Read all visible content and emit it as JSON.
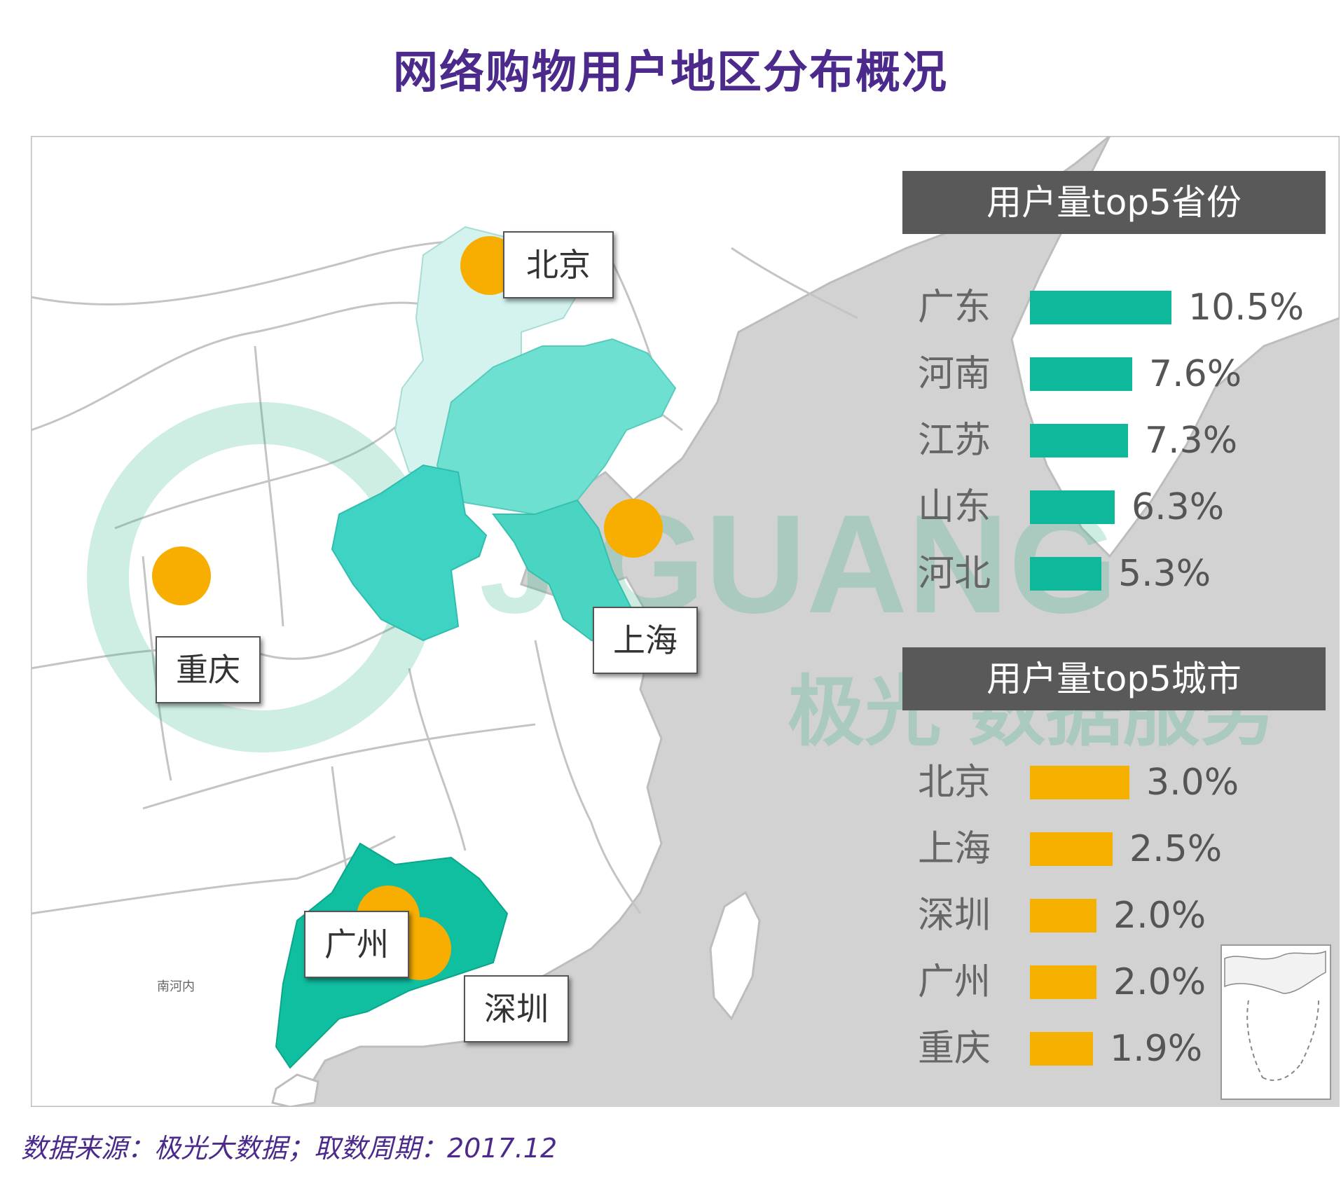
{
  "title": "网络购物用户地区分布概况",
  "colors": {
    "province_bar": "#0eb89a",
    "city_bar": "#f5b000",
    "city_marker": "#f7ae00",
    "title": "#4b2a8c",
    "panel_header_bg": "#595959",
    "sea": "#d2d2d2",
    "land": "#ffffff",
    "region_guangdong": "#10bea0",
    "region_henan": "#3fd3c3",
    "region_jiangsu": "#4ad5c2",
    "region_shandong": "#6ee0d2",
    "region_hebei": "#d4f3ef"
  },
  "map": {
    "city_labels": [
      {
        "id": "beijing",
        "name": "北京"
      },
      {
        "id": "shanghai",
        "name": "上海"
      },
      {
        "id": "chongqing",
        "name": "重庆"
      },
      {
        "id": "guangzhou",
        "name": "广州"
      },
      {
        "id": "shenzhen",
        "name": "深圳"
      }
    ],
    "watermark": {
      "brand": "JIGUANG",
      "tagline": "极光 数据服务"
    },
    "small_label": "南河内"
  },
  "provinces_panel": {
    "header": "用户量top5省份",
    "items": [
      {
        "name": "广东",
        "percent": 10.5,
        "label": "10.5%"
      },
      {
        "name": "河南",
        "percent": 7.6,
        "label": "7.6%"
      },
      {
        "name": "江苏",
        "percent": 7.3,
        "label": "7.3%"
      },
      {
        "name": "山东",
        "percent": 6.3,
        "label": "6.3%"
      },
      {
        "name": "河北",
        "percent": 5.3,
        "label": "5.3%"
      }
    ]
  },
  "cities_panel": {
    "header": "用户量top5城市",
    "items": [
      {
        "name": "北京",
        "percent": 3.0,
        "label": "3.0%"
      },
      {
        "name": "上海",
        "percent": 2.5,
        "label": "2.5%"
      },
      {
        "name": "深圳",
        "percent": 2.0,
        "label": "2.0%"
      },
      {
        "name": "广州",
        "percent": 2.0,
        "label": "2.0%"
      },
      {
        "name": "重庆",
        "percent": 1.9,
        "label": "1.9%"
      }
    ]
  },
  "source": "数据来源：极光大数据；取数周期：2017.12"
}
